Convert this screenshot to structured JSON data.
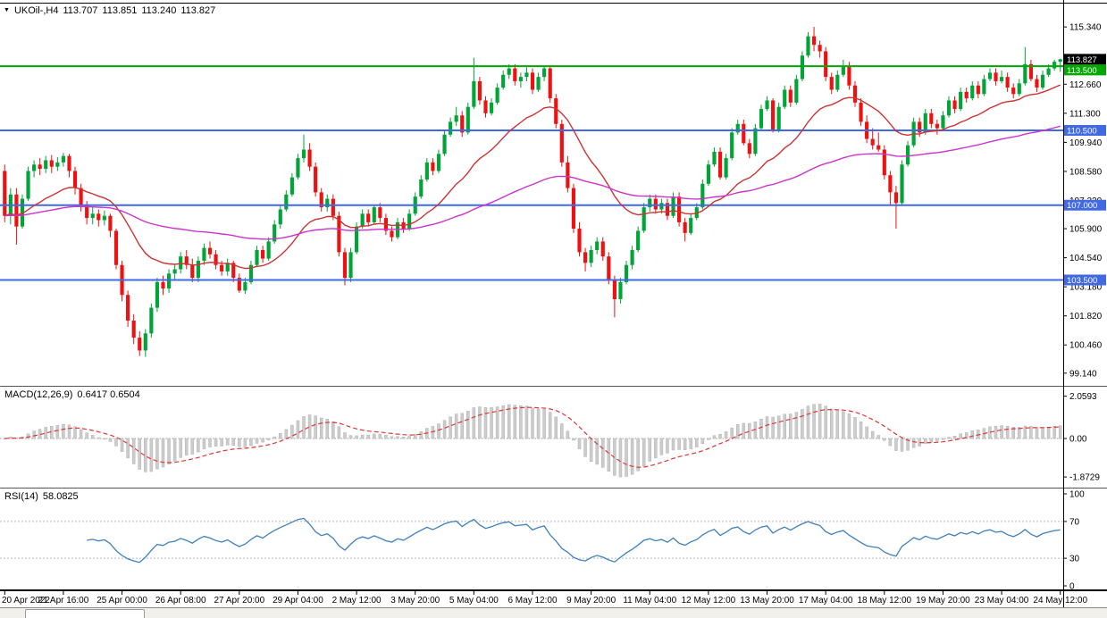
{
  "chart": {
    "marker_glyph": "▼",
    "symbol_period": "UKOil-,H4",
    "open": "113.707",
    "high": "113.851",
    "low": "113.240",
    "close": "113.827"
  },
  "colors": {
    "bull": "#00A437",
    "bear": "#EE1111",
    "ma_fast": "#CD3333",
    "ma_slow": "#CC33CC",
    "hline_blue": "#4169E1",
    "hline_green": "#00A800",
    "macd_hist": "#CCCCCC",
    "macd_hist_border": "#B3B3B3",
    "macd_signal": "#E03636",
    "rsi_line": "#3E7FBE",
    "level_dotted": "#B8B8C8",
    "tag_black": "#000000"
  },
  "chart_data": {
    "type": "candlestick",
    "symbol": "UKOil-",
    "timeframe": "H4",
    "ylim": [
      99.14,
      115.34
    ],
    "y_ticks": [
      "115.340",
      "112.660",
      "111.300",
      "109.940",
      "108.580",
      "107.220",
      "105.900",
      "104.540",
      "103.180",
      "101.820",
      "100.460",
      "99.140"
    ],
    "price_tags": [
      {
        "label": "113.827",
        "value": 113.827,
        "bg": "#000000"
      },
      {
        "label": "113.500",
        "value": 113.5,
        "bg": "#00A800"
      },
      {
        "label": "110.500",
        "value": 110.5,
        "bg": "#4169E1"
      },
      {
        "label": "107.000",
        "value": 107.0,
        "bg": "#4169E1"
      },
      {
        "label": "103.500",
        "value": 103.5,
        "bg": "#4169E1"
      }
    ],
    "hlines": [
      {
        "value": 113.5,
        "color": "#00A800"
      },
      {
        "value": 110.5,
        "color": "#4169E1"
      },
      {
        "value": 107.0,
        "color": "#4169E1"
      },
      {
        "value": 103.5,
        "color": "#4169E1"
      }
    ],
    "overlays": {
      "ma_fast": {
        "type": "ema",
        "period": 21
      },
      "ma_slow": {
        "type": "ema",
        "period": 89
      }
    },
    "x_label_step": 10,
    "x_labels": [
      "20 Apr 2022",
      "21 Apr 16:00",
      "25 Apr 00:00",
      "26 Apr 08:00",
      "27 Apr 20:00",
      "29 Apr 04:00",
      "2 May 12:00",
      "3 May 20:00",
      "5 May 04:00",
      "6 May 12:00",
      "9 May 20:00",
      "11 May 04:00",
      "12 May 12:00",
      "13 May 20:00",
      "17 May 04:00",
      "18 May 12:00",
      "19 May 20:00",
      "23 May 04:00",
      "24 May 12:00"
    ],
    "indicators": {
      "macd": {
        "label": "MACD(12,26,9)",
        "values": "0.6417 0.6504",
        "fast": 12,
        "slow": 26,
        "signal_period": 9,
        "axis_labels": [
          "2.0593",
          "0.00",
          "-1.8729"
        ]
      },
      "rsi": {
        "label": "RSI(14)",
        "value": "58.0825",
        "period": 14,
        "levels": [
          70,
          30
        ],
        "axis_labels": [
          "100",
          "70",
          "30",
          "0"
        ]
      }
    },
    "candles": [
      [
        108.6,
        108.9,
        106.2,
        106.5
      ],
      [
        106.5,
        107.8,
        106.1,
        107.5
      ],
      [
        107.5,
        107.8,
        105.15,
        106.0
      ],
      [
        106.0,
        107.5,
        105.9,
        107.3
      ],
      [
        107.3,
        108.8,
        107.2,
        108.6
      ],
      [
        108.6,
        109.1,
        108.3,
        108.9
      ],
      [
        108.9,
        109.2,
        108.4,
        108.7
      ],
      [
        108.7,
        109.3,
        108.5,
        109.1
      ],
      [
        109.1,
        109.35,
        108.5,
        108.8
      ],
      [
        108.8,
        109.25,
        108.6,
        109.0
      ],
      [
        109.0,
        109.45,
        108.8,
        109.3
      ],
      [
        109.3,
        109.4,
        108.3,
        108.6
      ],
      [
        108.6,
        108.8,
        107.5,
        107.8
      ],
      [
        107.8,
        108.0,
        106.7,
        107.0
      ],
      [
        107.0,
        107.2,
        106.1,
        106.4
      ],
      [
        106.4,
        106.9,
        106.1,
        106.6
      ],
      [
        106.6,
        106.8,
        106.0,
        106.3
      ],
      [
        106.3,
        106.75,
        106.05,
        106.5
      ],
      [
        106.5,
        106.6,
        105.5,
        105.8
      ],
      [
        105.8,
        105.9,
        104.0,
        104.2
      ],
      [
        104.2,
        104.4,
        102.5,
        102.8
      ],
      [
        102.8,
        103.0,
        101.3,
        101.6
      ],
      [
        101.6,
        101.9,
        100.5,
        100.8
      ],
      [
        100.8,
        101.1,
        99.95,
        100.2
      ],
      [
        100.2,
        101.2,
        99.9,
        101.0
      ],
      [
        101.0,
        102.4,
        100.8,
        102.2
      ],
      [
        102.2,
        103.6,
        102.0,
        103.4
      ],
      [
        103.4,
        103.7,
        102.8,
        103.1
      ],
      [
        103.1,
        104.0,
        102.9,
        103.8
      ],
      [
        103.8,
        104.2,
        103.5,
        104.0
      ],
      [
        104.0,
        104.8,
        103.8,
        104.6
      ],
      [
        104.6,
        104.9,
        104.0,
        104.2
      ],
      [
        104.2,
        104.5,
        103.4,
        103.6
      ],
      [
        103.6,
        104.6,
        103.4,
        104.4
      ],
      [
        104.4,
        105.2,
        104.2,
        105.0
      ],
      [
        105.0,
        105.3,
        104.5,
        104.7
      ],
      [
        104.7,
        104.9,
        104.0,
        104.2
      ],
      [
        104.2,
        104.4,
        103.7,
        103.9
      ],
      [
        103.9,
        104.5,
        103.7,
        104.3
      ],
      [
        104.3,
        104.4,
        103.4,
        103.6
      ],
      [
        103.6,
        103.8,
        102.9,
        103.0
      ],
      [
        103.0,
        103.6,
        102.85,
        103.4
      ],
      [
        103.4,
        104.4,
        103.3,
        104.2
      ],
      [
        104.2,
        105.1,
        104.1,
        104.9
      ],
      [
        104.9,
        105.1,
        104.3,
        104.5
      ],
      [
        104.5,
        105.5,
        104.4,
        105.3
      ],
      [
        105.3,
        106.3,
        105.2,
        106.1
      ],
      [
        106.1,
        107.0,
        105.9,
        106.8
      ],
      [
        106.8,
        107.7,
        106.7,
        107.5
      ],
      [
        107.5,
        108.5,
        107.4,
        108.3
      ],
      [
        108.3,
        109.4,
        108.2,
        109.2
      ],
      [
        109.2,
        110.3,
        109.0,
        109.6
      ],
      [
        109.6,
        109.9,
        108.6,
        108.8
      ],
      [
        108.8,
        109.0,
        107.4,
        107.6
      ],
      [
        107.6,
        107.8,
        106.7,
        106.9
      ],
      [
        106.9,
        107.5,
        106.7,
        107.3
      ],
      [
        107.3,
        107.5,
        106.3,
        106.5
      ],
      [
        106.5,
        106.7,
        104.6,
        104.8
      ],
      [
        104.8,
        105.0,
        103.25,
        103.6
      ],
      [
        103.6,
        105.0,
        103.4,
        104.8
      ],
      [
        104.8,
        106.2,
        104.7,
        106.0
      ],
      [
        106.0,
        106.8,
        105.9,
        106.6
      ],
      [
        106.6,
        106.8,
        106.0,
        106.2
      ],
      [
        106.2,
        107.0,
        106.1,
        106.9
      ],
      [
        106.9,
        107.1,
        106.2,
        106.4
      ],
      [
        106.4,
        106.6,
        105.6,
        105.8
      ],
      [
        105.8,
        106.0,
        105.3,
        105.5
      ],
      [
        105.5,
        106.4,
        105.4,
        106.2
      ],
      [
        106.2,
        106.4,
        105.7,
        105.9
      ],
      [
        105.9,
        106.8,
        105.8,
        106.6
      ],
      [
        106.6,
        107.6,
        106.5,
        107.4
      ],
      [
        107.4,
        108.4,
        107.3,
        108.2
      ],
      [
        108.2,
        109.2,
        108.1,
        109.0
      ],
      [
        109.0,
        109.2,
        108.4,
        108.6
      ],
      [
        108.6,
        109.6,
        108.5,
        109.4
      ],
      [
        109.4,
        110.5,
        109.3,
        110.3
      ],
      [
        110.3,
        111.1,
        110.2,
        110.9
      ],
      [
        110.9,
        111.6,
        110.7,
        111.2
      ],
      [
        111.2,
        111.4,
        110.2,
        110.4
      ],
      [
        110.4,
        111.8,
        110.3,
        111.6
      ],
      [
        111.6,
        113.9,
        111.5,
        112.8
      ],
      [
        112.8,
        113.0,
        111.7,
        111.9
      ],
      [
        111.9,
        112.1,
        111.1,
        111.3
      ],
      [
        111.3,
        112.0,
        111.2,
        111.8
      ],
      [
        111.8,
        112.7,
        111.7,
        112.5
      ],
      [
        112.5,
        113.3,
        112.4,
        113.1
      ],
      [
        113.1,
        113.6,
        112.9,
        113.4
      ],
      [
        113.4,
        113.6,
        112.6,
        112.8
      ],
      [
        112.8,
        113.2,
        112.5,
        113.0
      ],
      [
        113.0,
        113.45,
        112.8,
        113.2
      ],
      [
        113.2,
        113.4,
        112.2,
        112.4
      ],
      [
        112.4,
        113.2,
        112.3,
        113.0
      ],
      [
        113.0,
        113.55,
        112.8,
        113.4
      ],
      [
        113.4,
        113.5,
        111.8,
        112.0
      ],
      [
        112.0,
        112.2,
        110.6,
        110.8
      ],
      [
        110.8,
        111.0,
        108.8,
        109.0
      ],
      [
        109.0,
        109.3,
        107.6,
        107.8
      ],
      [
        107.8,
        108.0,
        105.7,
        105.9
      ],
      [
        105.9,
        106.2,
        104.6,
        104.8
      ],
      [
        104.8,
        105.0,
        103.9,
        104.3
      ],
      [
        104.3,
        105.1,
        104.1,
        104.9
      ],
      [
        104.9,
        105.5,
        104.7,
        105.3
      ],
      [
        105.3,
        105.5,
        104.4,
        104.6
      ],
      [
        104.6,
        104.8,
        103.3,
        103.5
      ],
      [
        103.5,
        103.7,
        101.75,
        102.6
      ],
      [
        102.6,
        103.6,
        102.4,
        103.4
      ],
      [
        103.4,
        104.4,
        103.3,
        104.2
      ],
      [
        104.2,
        105.1,
        104.0,
        104.9
      ],
      [
        104.9,
        106.0,
        104.8,
        105.8
      ],
      [
        105.8,
        107.1,
        105.7,
        106.9
      ],
      [
        106.9,
        107.5,
        106.7,
        107.3
      ],
      [
        107.3,
        107.5,
        106.6,
        106.8
      ],
      [
        106.8,
        107.3,
        106.6,
        107.1
      ],
      [
        107.1,
        107.3,
        106.3,
        106.5
      ],
      [
        106.5,
        107.6,
        106.4,
        107.4
      ],
      [
        107.4,
        107.6,
        106.0,
        106.2
      ],
      [
        106.2,
        106.4,
        105.3,
        105.7
      ],
      [
        105.7,
        106.6,
        105.6,
        106.4
      ],
      [
        106.4,
        107.1,
        106.3,
        106.9
      ],
      [
        106.9,
        108.2,
        106.8,
        108.0
      ],
      [
        108.0,
        109.1,
        107.9,
        108.9
      ],
      [
        108.9,
        109.7,
        108.8,
        109.5
      ],
      [
        109.5,
        109.7,
        108.2,
        108.3
      ],
      [
        108.3,
        109.4,
        108.2,
        109.2
      ],
      [
        109.2,
        110.6,
        109.1,
        110.4
      ],
      [
        110.4,
        111.0,
        110.3,
        110.8
      ],
      [
        110.8,
        111.0,
        109.8,
        109.9
      ],
      [
        109.9,
        110.1,
        109.2,
        109.4
      ],
      [
        109.4,
        110.8,
        109.3,
        110.6
      ],
      [
        110.6,
        111.7,
        110.5,
        111.5
      ],
      [
        111.5,
        112.1,
        111.4,
        111.9
      ],
      [
        111.9,
        112.0,
        110.4,
        110.5
      ],
      [
        110.5,
        111.8,
        110.4,
        111.6
      ],
      [
        111.6,
        112.6,
        111.5,
        112.4
      ],
      [
        112.4,
        112.6,
        111.6,
        111.8
      ],
      [
        111.8,
        113.1,
        111.7,
        112.9
      ],
      [
        112.9,
        114.2,
        112.8,
        114.0
      ],
      [
        114.0,
        115.1,
        113.9,
        114.9
      ],
      [
        114.9,
        115.34,
        114.2,
        114.5
      ],
      [
        114.5,
        114.7,
        113.9,
        114.2
      ],
      [
        114.2,
        114.4,
        112.8,
        113.0
      ],
      [
        113.0,
        113.2,
        112.2,
        112.4
      ],
      [
        112.4,
        113.3,
        112.3,
        113.1
      ],
      [
        113.1,
        113.8,
        113.0,
        113.5
      ],
      [
        113.5,
        113.7,
        112.4,
        112.6
      ],
      [
        112.6,
        112.8,
        111.6,
        111.8
      ],
      [
        111.8,
        112.0,
        110.7,
        110.9
      ],
      [
        110.9,
        111.2,
        109.9,
        110.1
      ],
      [
        110.1,
        110.6,
        109.6,
        109.8
      ],
      [
        109.8,
        110.4,
        109.5,
        109.6
      ],
      [
        109.6,
        109.8,
        108.2,
        108.4
      ],
      [
        108.4,
        108.6,
        107.0,
        107.6
      ],
      [
        107.6,
        107.9,
        105.9,
        107.1
      ],
      [
        107.1,
        109.1,
        107.0,
        108.9
      ],
      [
        108.9,
        110.0,
        108.8,
        109.8
      ],
      [
        109.8,
        111.1,
        109.7,
        110.9
      ],
      [
        110.9,
        111.1,
        110.2,
        110.4
      ],
      [
        110.4,
        111.5,
        110.3,
        111.3
      ],
      [
        111.3,
        111.5,
        110.6,
        110.8
      ],
      [
        110.8,
        111.0,
        110.3,
        110.6
      ],
      [
        110.6,
        111.4,
        110.5,
        111.2
      ],
      [
        111.2,
        112.1,
        111.1,
        111.9
      ],
      [
        111.9,
        112.1,
        111.3,
        111.5
      ],
      [
        111.5,
        112.5,
        111.4,
        112.3
      ],
      [
        112.3,
        112.5,
        111.8,
        112.0
      ],
      [
        112.0,
        112.8,
        111.9,
        112.6
      ],
      [
        112.6,
        112.8,
        112.0,
        112.2
      ],
      [
        112.2,
        113.1,
        112.1,
        112.9
      ],
      [
        112.9,
        113.4,
        112.8,
        113.2
      ],
      [
        113.2,
        113.4,
        112.6,
        112.8
      ],
      [
        112.8,
        113.3,
        112.7,
        113.0
      ],
      [
        113.0,
        113.2,
        112.3,
        112.5
      ],
      [
        112.5,
        112.7,
        112.0,
        112.2
      ],
      [
        112.2,
        112.9,
        112.1,
        112.7
      ],
      [
        112.7,
        114.4,
        112.6,
        113.6
      ],
      [
        113.6,
        113.8,
        112.8,
        112.9
      ],
      [
        112.9,
        113.1,
        112.3,
        112.5
      ],
      [
        112.5,
        113.3,
        112.4,
        113.1
      ],
      [
        113.1,
        113.6,
        113.0,
        113.4
      ],
      [
        113.4,
        113.8,
        113.3,
        113.71
      ],
      [
        113.71,
        113.851,
        113.24,
        113.827
      ]
    ]
  }
}
